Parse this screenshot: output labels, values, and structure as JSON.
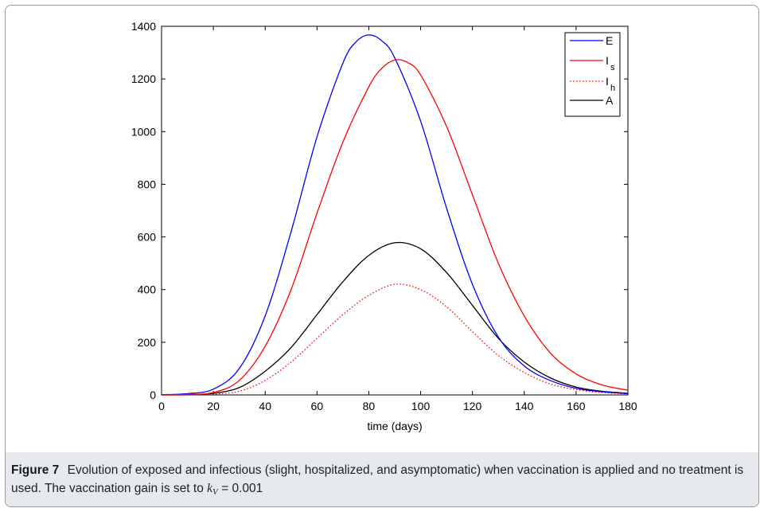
{
  "figure": {
    "label": "Figure 7",
    "caption": "Evolution of exposed and infectious (slight, hospitalized, and asymptomatic) when vaccination is applied and no treatment is used. The vaccination gain is set to",
    "gain_symbol": "k",
    "gain_subscript": "V",
    "gain_value": "= 0.001"
  },
  "chart_data": {
    "type": "line",
    "title": "",
    "xlabel": "time (days)",
    "ylabel": "",
    "xlim": [
      0,
      180
    ],
    "ylim": [
      0,
      1400
    ],
    "xticks": [
      0,
      20,
      40,
      60,
      80,
      100,
      120,
      140,
      160,
      180
    ],
    "yticks": [
      0,
      200,
      400,
      600,
      800,
      1000,
      1200,
      1400
    ],
    "grid": false,
    "legend_position": "top-right",
    "series": [
      {
        "name": "E",
        "name_sub": "",
        "color": "#0000ff",
        "style": "solid",
        "x": [
          0,
          10,
          20,
          30,
          40,
          50,
          60,
          70,
          75,
          80,
          85,
          90,
          100,
          110,
          120,
          130,
          140,
          150,
          160,
          170,
          180
        ],
        "y": [
          1,
          5,
          22,
          100,
          300,
          620,
          980,
          1260,
          1340,
          1367,
          1345,
          1280,
          1040,
          710,
          420,
          220,
          110,
          55,
          25,
          12,
          5
        ]
      },
      {
        "name": "I",
        "name_sub": "s",
        "color": "#ff0000",
        "style": "solid",
        "x": [
          0,
          10,
          20,
          30,
          40,
          50,
          60,
          70,
          80,
          85,
          90,
          95,
          100,
          110,
          120,
          130,
          140,
          150,
          160,
          170,
          180
        ],
        "y": [
          0,
          2,
          9,
          55,
          185,
          400,
          690,
          960,
          1170,
          1240,
          1272,
          1262,
          1215,
          1020,
          760,
          500,
          300,
          160,
          80,
          38,
          18
        ]
      },
      {
        "name": "I",
        "name_sub": "h",
        "color": "#ff0000",
        "style": "dotted",
        "x": [
          0,
          10,
          20,
          30,
          40,
          50,
          60,
          70,
          80,
          90,
          100,
          110,
          120,
          130,
          140,
          150,
          160,
          170,
          180
        ],
        "y": [
          0,
          0,
          3,
          14,
          55,
          125,
          215,
          305,
          378,
          420,
          400,
          335,
          240,
          150,
          85,
          42,
          20,
          9,
          4
        ]
      },
      {
        "name": "A",
        "name_sub": "",
        "color": "#000000",
        "style": "solid",
        "x": [
          0,
          10,
          20,
          30,
          40,
          50,
          60,
          70,
          80,
          90,
          100,
          110,
          120,
          130,
          140,
          150,
          160,
          170,
          180
        ],
        "y": [
          0,
          1,
          6,
          28,
          90,
          180,
          305,
          430,
          530,
          578,
          555,
          465,
          340,
          215,
          125,
          65,
          30,
          14,
          6
        ]
      }
    ]
  }
}
